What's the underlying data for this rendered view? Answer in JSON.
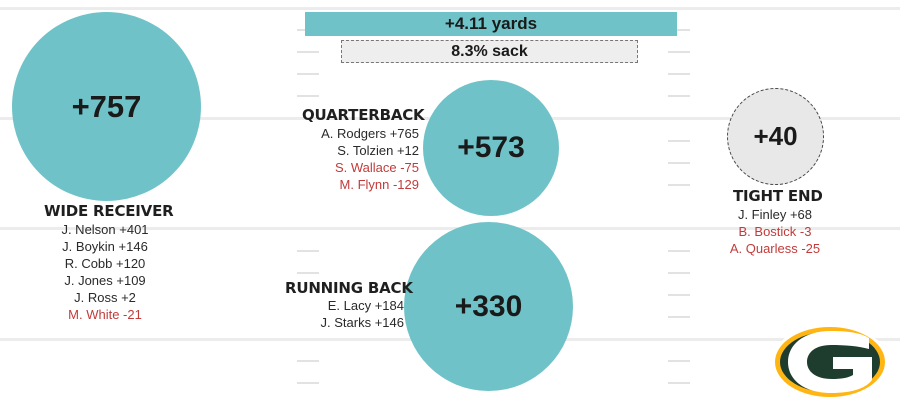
{
  "summary": {
    "yards_label": "+4.11 yards",
    "sack_label": "8.3% sack"
  },
  "colors": {
    "teal": "#6fc3c8",
    "negative": "#c23b3b",
    "logo_green": "#1f3d2e",
    "logo_gold": "#ffb612"
  },
  "positions": {
    "wide_receiver": {
      "title": "WIDE RECEIVER",
      "total": "+757",
      "players": [
        {
          "text": "J. Nelson +401",
          "value": 401
        },
        {
          "text": "J. Boykin +146",
          "value": 146
        },
        {
          "text": "R. Cobb +120",
          "value": 120
        },
        {
          "text": "J. Jones +109",
          "value": 109
        },
        {
          "text": "J. Ross +2",
          "value": 2
        },
        {
          "text": "M. White -21",
          "value": -21
        }
      ]
    },
    "quarterback": {
      "title": "QUARTERBACK",
      "total": "+573",
      "players": [
        {
          "text": "A. Rodgers +765",
          "value": 765
        },
        {
          "text": "S. Tolzien +12",
          "value": 12
        },
        {
          "text": "S. Wallace -75",
          "value": -75
        },
        {
          "text": "M. Flynn -129",
          "value": -129
        }
      ]
    },
    "running_back": {
      "title": "RUNNING BACK",
      "total": "+330",
      "players": [
        {
          "text": "E. Lacy +184",
          "value": 184
        },
        {
          "text": "J. Starks +146",
          "value": 146
        }
      ]
    },
    "tight_end": {
      "title": "TIGHT END",
      "total": "+40",
      "players": [
        {
          "text": "J. Finley +68",
          "value": 68
        },
        {
          "text": "B. Bostick -3",
          "value": -3
        },
        {
          "text": "A. Quarless -25",
          "value": -25
        }
      ]
    }
  },
  "logo": {
    "icon": "packers-g-logo-icon"
  }
}
